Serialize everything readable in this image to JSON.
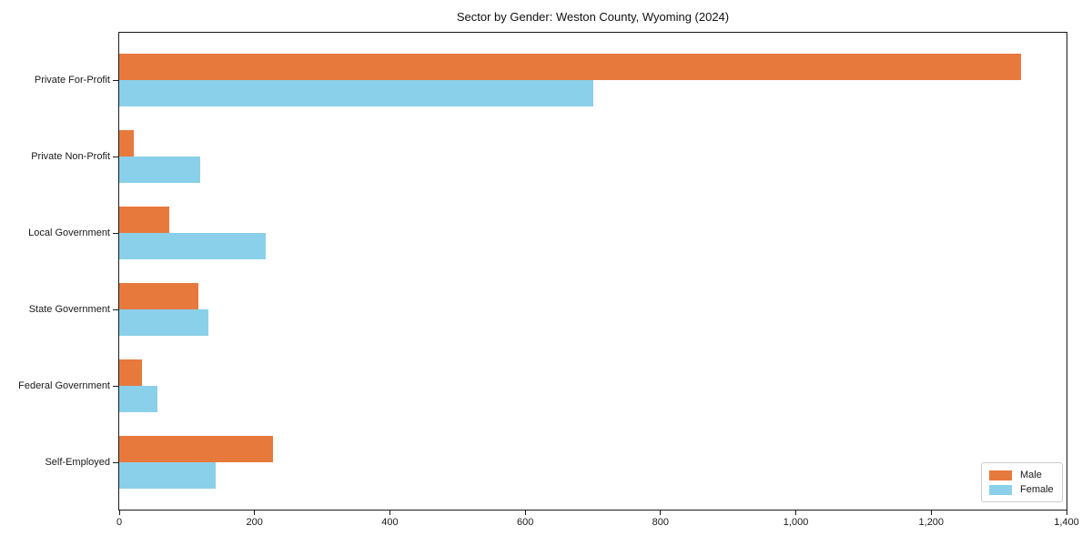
{
  "title": "Sector by Gender: Weston County, Wyoming (2024)",
  "colors": {
    "male": "#e8793d",
    "female": "#8bd0ea",
    "spine": "#1a1a1a",
    "text": "#1a1a1a",
    "legend_border": "#cccccc",
    "background": "#ffffff"
  },
  "chart_data": {
    "type": "bar",
    "orientation": "horizontal",
    "title": "Sector by Gender: Weston County, Wyoming (2024)",
    "xlabel": "",
    "ylabel": "",
    "categories": [
      "Private For-Profit",
      "Private Non-Profit",
      "Local Government",
      "State Government",
      "Federal Government",
      "Self-Employed"
    ],
    "series": [
      {
        "name": "Male",
        "color": "#e8793d",
        "values": [
          1333,
          21,
          74,
          117,
          34,
          227
        ]
      },
      {
        "name": "Female",
        "color": "#8bd0ea",
        "values": [
          700,
          120,
          217,
          132,
          56,
          142
        ]
      }
    ],
    "xlim": [
      0,
      1400
    ],
    "x_ticks": [
      0,
      200,
      400,
      600,
      800,
      1000,
      1200,
      1400
    ],
    "x_tick_labels": [
      "0",
      "200",
      "400",
      "600",
      "800",
      "1,000",
      "1,200",
      "1,400"
    ],
    "grid": false,
    "legend": {
      "position": "lower right",
      "entries": [
        "Male",
        "Female"
      ]
    }
  }
}
